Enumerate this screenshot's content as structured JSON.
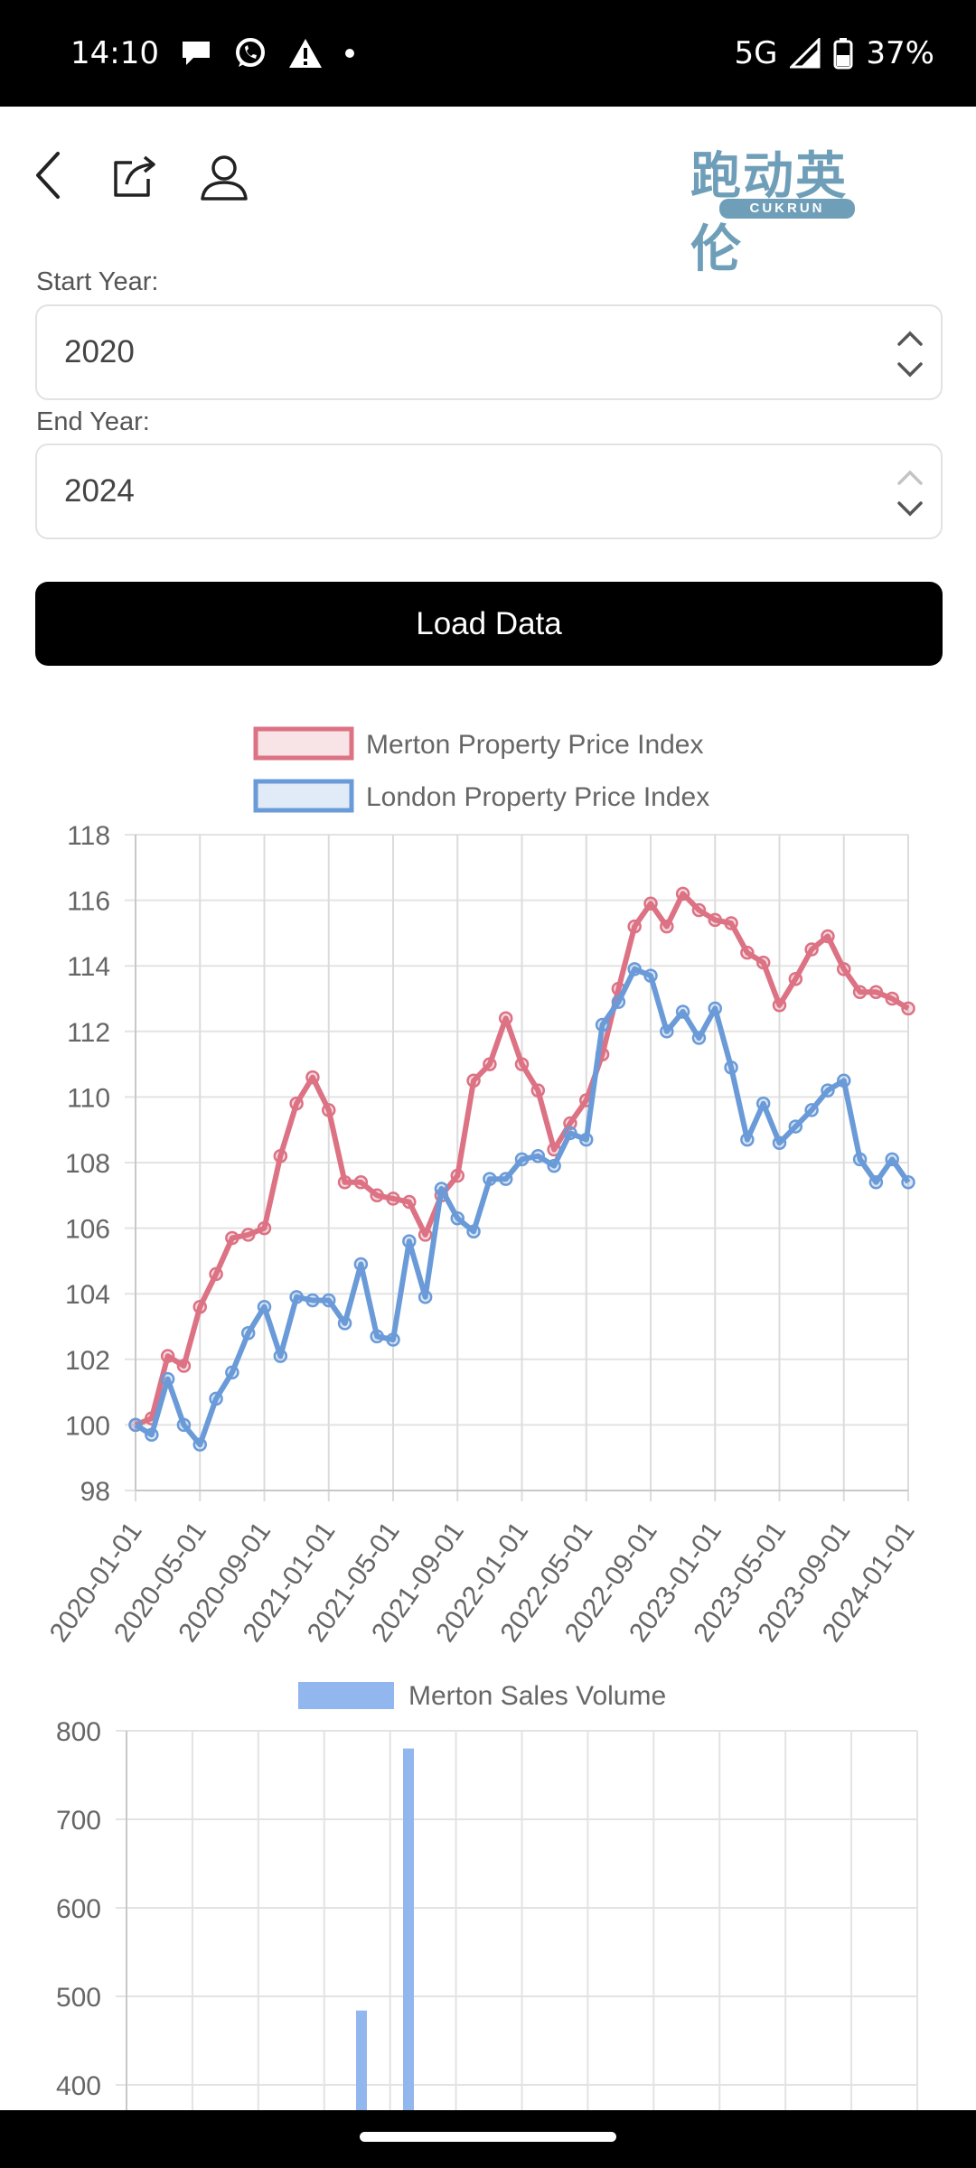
{
  "status_bar": {
    "time": "14:10",
    "network": "5G",
    "battery": "37%"
  },
  "toolbar": {
    "back_icon": "back-chevron-icon",
    "share_icon": "share-icon",
    "account_icon": "user-icon"
  },
  "logo": {
    "text": "跑动英伦",
    "subtext": "CUKRUN"
  },
  "form": {
    "start_label": "Start Year:",
    "start_value": "2020",
    "end_label": "End Year:",
    "end_value": "2024",
    "load_button": "Load Data"
  },
  "colors": {
    "merton": "#dc7284",
    "london": "#6a9bd8",
    "sales": "#92b6ee"
  },
  "chart_data": [
    {
      "type": "line",
      "title": "",
      "legend_placement": "top",
      "grid": true,
      "x": [
        "2020-01-01",
        "2020-02-01",
        "2020-03-01",
        "2020-04-01",
        "2020-05-01",
        "2020-06-01",
        "2020-07-01",
        "2020-08-01",
        "2020-09-01",
        "2020-10-01",
        "2020-11-01",
        "2020-12-01",
        "2021-01-01",
        "2021-02-01",
        "2021-03-01",
        "2021-04-01",
        "2021-05-01",
        "2021-06-01",
        "2021-07-01",
        "2021-08-01",
        "2021-09-01",
        "2021-10-01",
        "2021-11-01",
        "2021-12-01",
        "2022-01-01",
        "2022-02-01",
        "2022-03-01",
        "2022-04-01",
        "2022-05-01",
        "2022-06-01",
        "2022-07-01",
        "2022-08-01",
        "2022-09-01",
        "2022-10-01",
        "2022-11-01",
        "2022-12-01",
        "2023-01-01",
        "2023-02-01",
        "2023-03-01",
        "2023-04-01",
        "2023-05-01",
        "2023-06-01",
        "2023-07-01",
        "2023-08-01",
        "2023-09-01",
        "2023-10-01",
        "2023-11-01",
        "2023-12-01",
        "2024-01-01"
      ],
      "x_tick_labels": [
        "2020-01-01",
        "2020-05-01",
        "2020-09-01",
        "2021-01-01",
        "2021-05-01",
        "2021-09-01",
        "2022-01-01",
        "2022-05-01",
        "2022-09-01",
        "2023-01-01",
        "2023-05-01",
        "2023-09-01",
        "2024-01-01"
      ],
      "ylim": [
        98,
        118
      ],
      "y_ticks": [
        98,
        100,
        102,
        104,
        106,
        108,
        110,
        112,
        114,
        116,
        118
      ],
      "series": [
        {
          "name": "Merton Property Price Index",
          "values": [
            100.0,
            100.2,
            102.1,
            101.8,
            103.6,
            104.6,
            105.7,
            105.8,
            106.0,
            108.2,
            109.8,
            110.6,
            109.6,
            107.4,
            107.4,
            107.0,
            106.9,
            106.8,
            105.8,
            107.0,
            107.6,
            110.5,
            111.0,
            112.4,
            111.0,
            110.2,
            108.4,
            109.2,
            109.9,
            111.3,
            113.3,
            115.2,
            115.9,
            115.2,
            116.2,
            115.7,
            115.4,
            115.3,
            114.4,
            114.1,
            112.8,
            113.6,
            114.5,
            114.9,
            113.9,
            113.2,
            113.2,
            113.0,
            112.7
          ]
        },
        {
          "name": "London Property Price Index",
          "values": [
            100.0,
            99.7,
            101.4,
            100.0,
            99.4,
            100.8,
            101.6,
            102.8,
            103.6,
            102.1,
            103.9,
            103.8,
            103.8,
            103.1,
            104.9,
            102.7,
            102.6,
            105.6,
            103.9,
            107.2,
            106.3,
            105.9,
            107.5,
            107.5,
            108.1,
            108.2,
            107.9,
            108.9,
            108.7,
            112.2,
            112.9,
            113.9,
            113.7,
            112.0,
            112.6,
            111.8,
            112.7,
            110.9,
            108.7,
            109.8,
            108.6,
            109.1,
            109.6,
            110.2,
            110.5,
            108.1,
            107.4,
            108.1,
            107.4
          ]
        }
      ]
    },
    {
      "type": "bar",
      "title": "",
      "legend_placement": "top",
      "grid": true,
      "y_ticks": [
        400,
        500,
        600,
        700,
        800
      ],
      "ylim": [
        0,
        800
      ],
      "series": [
        {
          "name": "Merton Sales Volume",
          "bars": [
            {
              "value": 484
            },
            {
              "value": 780
            }
          ]
        }
      ]
    }
  ]
}
